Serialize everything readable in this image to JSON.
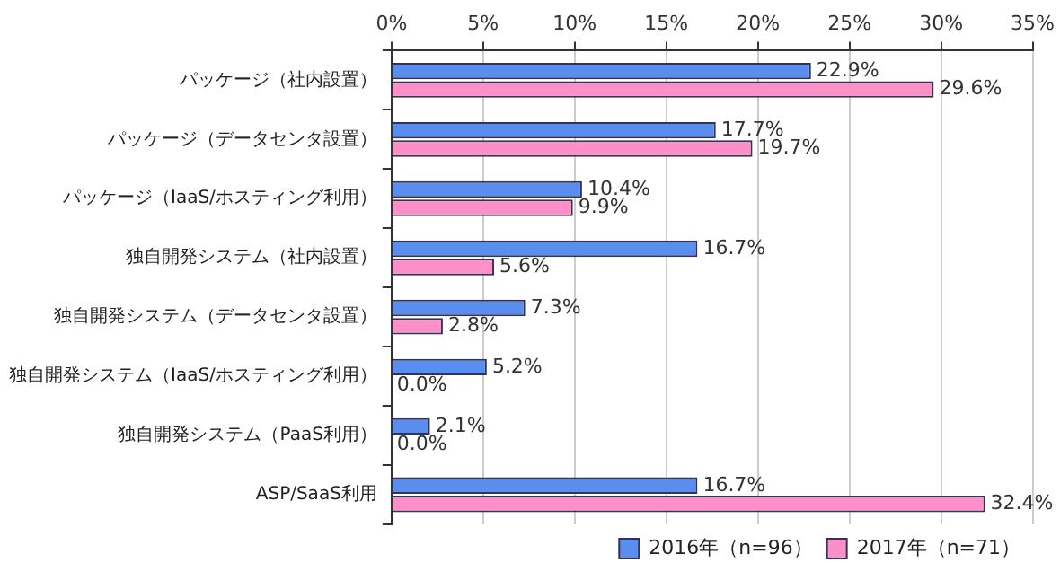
{
  "chart_data": {
    "type": "bar",
    "orientation": "horizontal",
    "categories": [
      "パッケージ（社内設置）",
      "パッケージ（データセンタ設置）",
      "パッケージ（IaaS/ホスティング利用）",
      "独自開発システム（社内設置）",
      "独自開発システム（データセンタ設置）",
      "独自開発システム（IaaS/ホスティング利用）",
      "独自開発システム（PaaS利用）",
      "ASP/SaaS利用"
    ],
    "series": [
      {
        "name": "2016年（n=96）",
        "color": "#5b8def",
        "values": [
          22.9,
          17.7,
          10.4,
          16.7,
          7.3,
          5.2,
          2.1,
          16.7
        ],
        "value_labels": [
          "22.9%",
          "17.7%",
          "10.4%",
          "16.7%",
          "7.3%",
          "5.2%",
          "2.1%",
          "16.7%"
        ]
      },
      {
        "name": "2017年（n=71）",
        "color": "#ff8fc8",
        "values": [
          29.6,
          19.7,
          9.9,
          5.6,
          2.8,
          0.0,
          0.0,
          32.4
        ],
        "value_labels": [
          "29.6%",
          "19.7%",
          "9.9%",
          "5.6%",
          "2.8%",
          "0.0%",
          "0.0%",
          "32.4%"
        ]
      }
    ],
    "xlim": [
      0,
      35
    ],
    "xticks": [
      {
        "value": 0,
        "label": "0%"
      },
      {
        "value": 5,
        "label": "5%"
      },
      {
        "value": 10,
        "label": "10%"
      },
      {
        "value": 15,
        "label": "15%"
      },
      {
        "value": 20,
        "label": "20%"
      },
      {
        "value": 25,
        "label": "25%"
      },
      {
        "value": 30,
        "label": "30%"
      },
      {
        "value": 35,
        "label": "35%"
      }
    ],
    "grid": "x",
    "legend": "bottom right"
  }
}
